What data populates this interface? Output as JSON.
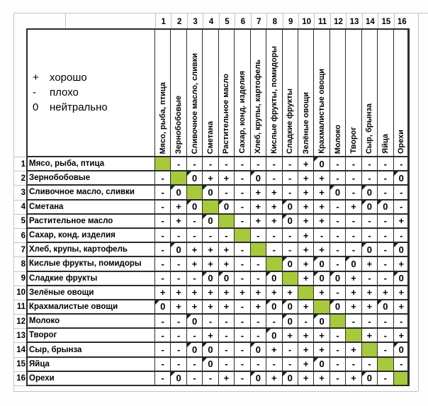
{
  "legend": {
    "items": [
      {
        "symbol": "+",
        "label": "хорошо"
      },
      {
        "symbol": "-",
        "label": "плохо"
      },
      {
        "symbol": "0",
        "label": "нейтрально"
      }
    ]
  },
  "col_numbers": [
    "1",
    "2",
    "3",
    "4",
    "5",
    "6",
    "7",
    "8",
    "9",
    "10",
    "11",
    "12",
    "13",
    "14",
    "15",
    "16"
  ],
  "row_numbers": [
    "1",
    "2",
    "3",
    "4",
    "5",
    "6",
    "7",
    "8",
    "9",
    "10",
    "11",
    "12",
    "13",
    "14",
    "15",
    "16"
  ],
  "chart_data": {
    "type": "table",
    "row_labels": [
      "Мясо, рыба, птица",
      "Зернобобовые",
      "Сливочное масло, сливки",
      "Сметана",
      "Растительное масло",
      "Сахар, конд. изделия",
      "Хлеб, крупы, картофель",
      "Кислые фрукты, помидоры",
      "Сладкие фрукты",
      "Зелёные овощи",
      "Крахмалистые овощи",
      "Молоко",
      "Творог",
      "Сыр, брынза",
      "Яйца",
      "Орехи"
    ],
    "col_labels": [
      "Мясо, рыба, птица",
      "Зернобобовые",
      "Сливочное масло, сливки",
      "Сметана",
      "Растительное масло",
      "Сахар, конд. изделия",
      "Хлеб, крупы, картофель",
      "Кислые фрукты, помидоры",
      "Сладкие фрукты",
      "Зелёные овощи",
      "Крахмалистые овощи",
      "Молоко",
      "Творог",
      "Сыр, брынза",
      "Яйца",
      "Орехи"
    ],
    "legend_meaning": {
      "+": "хорошо",
      "-": "плохо",
      "0": "нейтрально"
    },
    "diagonal": "green self cells",
    "matrix": [
      [
        null,
        "-",
        "-",
        "-",
        "-",
        "-",
        "-",
        "-",
        "-",
        "+",
        "0",
        "-",
        "-",
        "-",
        "-",
        "-"
      ],
      [
        "-",
        null,
        "0",
        "+",
        "+",
        "-",
        "0",
        "-",
        "-",
        "+",
        "+",
        "-",
        "-",
        "-",
        "-",
        "0"
      ],
      [
        "-",
        "0",
        null,
        "0",
        "-",
        "-",
        "+",
        "+",
        "-",
        "+",
        "+",
        "0",
        "-",
        "0",
        "-",
        "-"
      ],
      [
        "-",
        "+",
        "0",
        null,
        "0",
        "-",
        "+",
        "+",
        "0",
        "+",
        "+",
        "-",
        "+",
        "0",
        "0",
        "-"
      ],
      [
        "-",
        "+",
        "-",
        "0",
        null,
        "-",
        "+",
        "+",
        "0",
        "+",
        "+",
        "-",
        "-",
        "-",
        "-",
        "+"
      ],
      [
        "-",
        "-",
        "-",
        "-",
        "-",
        null,
        "-",
        "-",
        "-",
        "+",
        "-",
        "-",
        "-",
        "-",
        "-",
        "-"
      ],
      [
        "-",
        "0",
        "+",
        "+",
        "+",
        "-",
        null,
        "-",
        "-",
        "+",
        "+",
        "-",
        "-",
        "0",
        "-",
        "0"
      ],
      [
        "-",
        "-",
        "+",
        "+",
        "+",
        "-",
        "-",
        null,
        "0",
        "+",
        "0",
        "-",
        "0",
        "+",
        "-",
        "+"
      ],
      [
        "-",
        "-",
        "-",
        "0",
        "0",
        "-",
        "-",
        "0",
        null,
        "+",
        "0",
        "0",
        "+",
        "-",
        "-",
        "0"
      ],
      [
        "+",
        "+",
        "+",
        "+",
        "+",
        "+",
        "+",
        "+",
        "+",
        null,
        "+",
        "-",
        "+",
        "+",
        "+",
        "+"
      ],
      [
        "0",
        "+",
        "+",
        "+",
        "+",
        "-",
        "+",
        "0",
        "0",
        "+",
        null,
        "0",
        "+",
        "+",
        "0",
        "+"
      ],
      [
        "-",
        "-",
        "0",
        "-",
        "-",
        "-",
        "-",
        "-",
        "0",
        "-",
        "0",
        null,
        "-",
        "-",
        "-",
        "-"
      ],
      [
        "-",
        "-",
        "-",
        "+",
        "-",
        "-",
        "-",
        "0",
        "+",
        "+",
        "+",
        "-",
        null,
        "+",
        "-",
        "+"
      ],
      [
        "-",
        "-",
        "0",
        "0",
        "-",
        "-",
        "0",
        "+",
        "-",
        "+",
        "+",
        "-",
        "+",
        null,
        "-",
        "0"
      ],
      [
        "-",
        "-",
        "-",
        "0",
        "-",
        "-",
        "-",
        "-",
        "-",
        "+",
        "0",
        "-",
        "-",
        "-",
        null,
        "-"
      ],
      [
        "-",
        "0",
        "-",
        "-",
        "+",
        "-",
        "0",
        "+",
        "0",
        "+",
        "+",
        "-",
        "+",
        "0",
        "-",
        null
      ]
    ]
  },
  "colors": {
    "diagonal_green": "#a7c93c",
    "table_border": "#2c2c2c",
    "grid_line": "#c3c3c3"
  }
}
